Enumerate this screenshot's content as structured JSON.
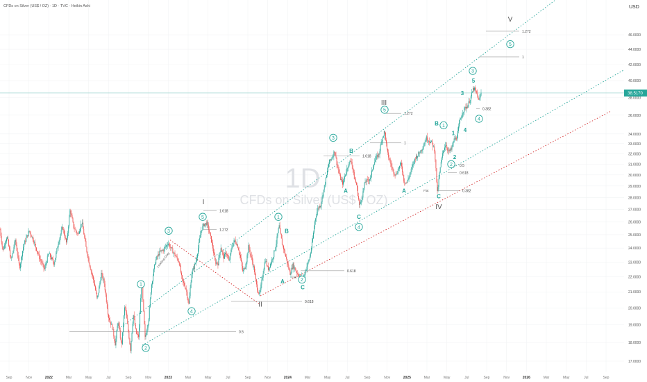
{
  "chart_data": {
    "type": "candlestick",
    "title": "CFDs on Silver (US$ / OZ) · 1D · TVC · Heikin Ashi",
    "watermark_interval": "1D",
    "watermark_symbol": "CFDs on Silver (US$ / OZ)",
    "currency": "USD",
    "last_price_label": "38.5170",
    "colors": {
      "up": "#26a69a",
      "down": "#ef5350",
      "channel_green": "#26a69a",
      "channel_red": "#d32f2f",
      "price_line": "#9cd5cf",
      "fib_line": "#9e9e9e"
    },
    "scale": "log",
    "ylim": [
      17.0,
      50.5
    ],
    "x_axis": [
      "Sep",
      "Nov",
      "2022",
      "Mar",
      "May",
      "Jul",
      "Sep",
      "Nov",
      "2023",
      "Mar",
      "May",
      "Jul",
      "Sep",
      "Nov",
      "2024",
      "Mar",
      "May",
      "Jul",
      "Sep",
      "Nov",
      "2025",
      "Mar",
      "May",
      "Jul",
      "Sep",
      "Nov",
      "2026",
      "Mar",
      "May",
      "Jul",
      "Sep"
    ],
    "y_ticks": [
      "46.0000",
      "44.0000",
      "42.0000",
      "40.0000",
      "38.0000",
      "36.0000",
      "34.0000",
      "33.0000",
      "32.0000",
      "31.0000",
      "30.0000",
      "29.0000",
      "28.0000",
      "27.0000",
      "26.0000",
      "25.0000",
      "24.0000",
      "23.0000",
      "22.0000",
      "21.0000",
      "20.0000",
      "19.0000",
      "18.0000",
      "17.0000"
    ],
    "y_tick_values": [
      46,
      44,
      42,
      40,
      38,
      36,
      34,
      33,
      32,
      31,
      30,
      29,
      28,
      27,
      26,
      25,
      24,
      23,
      22,
      21,
      20,
      19,
      18,
      17
    ],
    "price_path": [
      [
        0,
        25.4
      ],
      [
        4,
        23.8
      ],
      [
        10,
        24.9
      ],
      [
        16,
        23.1
      ],
      [
        22,
        24.6
      ],
      [
        28,
        22.6
      ],
      [
        34,
        24.2
      ],
      [
        42,
        25.3
      ],
      [
        48,
        24.6
      ],
      [
        56,
        23.4
      ],
      [
        64,
        22.5
      ],
      [
        70,
        23.6
      ],
      [
        78,
        22.9
      ],
      [
        84,
        24.4
      ],
      [
        90,
        25.6
      ],
      [
        96,
        24.3
      ],
      [
        101,
        27.0
      ],
      [
        106,
        25.6
      ],
      [
        112,
        25.0
      ],
      [
        118,
        26.0
      ],
      [
        124,
        24.0
      ],
      [
        130,
        22.6
      ],
      [
        136,
        21.5
      ],
      [
        140,
        20.5
      ],
      [
        146,
        22.2
      ],
      [
        150,
        21.6
      ],
      [
        156,
        19.5
      ],
      [
        162,
        18.8
      ],
      [
        166,
        17.9
      ],
      [
        170,
        19.2
      ],
      [
        175,
        17.8
      ],
      [
        180,
        20.2
      ],
      [
        184,
        18.9
      ],
      [
        188,
        17.6
      ],
      [
        192,
        19.6
      ],
      [
        196,
        18.5
      ],
      [
        200,
        18.3
      ],
      [
        204,
        21.7
      ],
      [
        209,
        18.2
      ],
      [
        214,
        19.3
      ],
      [
        218,
        21.4
      ],
      [
        224,
        23.1
      ],
      [
        230,
        23.7
      ],
      [
        236,
        23.9
      ],
      [
        242,
        24.4
      ],
      [
        246,
        24.0
      ],
      [
        252,
        23.5
      ],
      [
        258,
        23.0
      ],
      [
        262,
        21.8
      ],
      [
        268,
        21.2
      ],
      [
        272,
        20.2
      ],
      [
        276,
        22.2
      ],
      [
        282,
        23.0
      ],
      [
        286,
        24.1
      ],
      [
        290,
        25.4
      ],
      [
        294,
        25.8
      ],
      [
        298,
        25.9
      ],
      [
        302,
        25.1
      ],
      [
        306,
        24.2
      ],
      [
        310,
        23.0
      ],
      [
        314,
        22.9
      ],
      [
        318,
        24.1
      ],
      [
        322,
        23.3
      ],
      [
        326,
        23.7
      ],
      [
        330,
        23.0
      ],
      [
        334,
        24.1
      ],
      [
        338,
        24.6
      ],
      [
        342,
        24.2
      ],
      [
        346,
        23.4
      ],
      [
        350,
        22.3
      ],
      [
        354,
        22.8
      ],
      [
        358,
        24.1
      ],
      [
        362,
        23.3
      ],
      [
        366,
        22.5
      ],
      [
        370,
        21.3
      ],
      [
        374,
        20.8
      ],
      [
        378,
        22.0
      ],
      [
        382,
        23.2
      ],
      [
        386,
        22.5
      ],
      [
        390,
        22.9
      ],
      [
        394,
        23.5
      ],
      [
        398,
        24.4
      ],
      [
        402,
        25.7
      ],
      [
        406,
        24.4
      ],
      [
        410,
        23.7
      ],
      [
        414,
        22.9
      ],
      [
        418,
        22.2
      ],
      [
        422,
        22.8
      ],
      [
        426,
        22.4
      ],
      [
        430,
        22.1
      ],
      [
        434,
        21.9
      ],
      [
        438,
        22.1
      ],
      [
        442,
        22.7
      ],
      [
        446,
        23.3
      ],
      [
        450,
        24.5
      ],
      [
        454,
        26.2
      ],
      [
        458,
        27.1
      ],
      [
        462,
        27.4
      ],
      [
        466,
        28.6
      ],
      [
        470,
        29.8
      ],
      [
        474,
        31.2
      ],
      [
        478,
        31.6
      ],
      [
        482,
        32.3
      ],
      [
        486,
        30.8
      ],
      [
        490,
        29.7
      ],
      [
        494,
        29.2
      ],
      [
        498,
        30.2
      ],
      [
        502,
        31.0
      ],
      [
        506,
        31.4
      ],
      [
        510,
        29.8
      ],
      [
        514,
        29.0
      ],
      [
        518,
        27.2
      ],
      [
        522,
        28.2
      ],
      [
        526,
        29.4
      ],
      [
        530,
        29.5
      ],
      [
        534,
        29.8
      ],
      [
        538,
        31.0
      ],
      [
        542,
        31.6
      ],
      [
        546,
        32.0
      ],
      [
        550,
        33.4
      ],
      [
        554,
        34.3
      ],
      [
        558,
        32.1
      ],
      [
        562,
        31.2
      ],
      [
        566,
        30.4
      ],
      [
        570,
        30.0
      ],
      [
        574,
        30.6
      ],
      [
        578,
        31.1
      ],
      [
        582,
        29.4
      ],
      [
        586,
        29.3
      ],
      [
        590,
        30.0
      ],
      [
        594,
        30.8
      ],
      [
        598,
        31.6
      ],
      [
        602,
        31.9
      ],
      [
        606,
        32.3
      ],
      [
        610,
        32.8
      ],
      [
        614,
        33.6
      ],
      [
        618,
        33.3
      ],
      [
        622,
        33.1
      ],
      [
        626,
        32.4
      ],
      [
        630,
        28.4
      ],
      [
        634,
        30.6
      ],
      [
        638,
        32.2
      ],
      [
        642,
        33.0
      ],
      [
        646,
        32.2
      ],
      [
        650,
        32.4
      ],
      [
        654,
        33.4
      ],
      [
        658,
        33.6
      ],
      [
        662,
        35.2
      ],
      [
        666,
        36.3
      ],
      [
        670,
        36.8
      ],
      [
        674,
        37.1
      ],
      [
        678,
        38.0
      ],
      [
        682,
        39.1
      ],
      [
        686,
        38.6
      ],
      [
        690,
        37.6
      ],
      [
        693,
        38.5
      ]
    ],
    "waves": [
      {
        "label": "I",
        "style": "roman",
        "date_x": 293,
        "price": 27.6
      },
      {
        "label": "II",
        "style": "roman",
        "date_x": 375,
        "price": 20.2
      },
      {
        "label": "III",
        "style": "roman",
        "date_x": 553,
        "price": 37.4
      },
      {
        "label": "IV",
        "style": "roman",
        "date_x": 632,
        "price": 27.2
      },
      {
        "label": "V",
        "style": "roman",
        "date_x": 735,
        "price": 48.2
      },
      {
        "label": "1",
        "style": "circle",
        "date_x": 203,
        "price": 21.5
      },
      {
        "label": "2",
        "style": "circle",
        "date_x": 210,
        "price": 17.7
      },
      {
        "label": "3",
        "style": "circle",
        "date_x": 243,
        "price": 25.3
      },
      {
        "label": "4",
        "style": "circle",
        "date_x": 276,
        "price": 19.8
      },
      {
        "label": "5",
        "style": "circle",
        "date_x": 292,
        "price": 26.4
      },
      {
        "label": "1",
        "style": "circle",
        "date_x": 401,
        "price": 26.4
      },
      {
        "label": "2",
        "style": "circle",
        "date_x": 435,
        "price": 21.8
      },
      {
        "label": "3",
        "style": "circle",
        "date_x": 480,
        "price": 33.6
      },
      {
        "label": "4",
        "style": "circle",
        "date_x": 517,
        "price": 25.6
      },
      {
        "label": "5",
        "style": "circle",
        "date_x": 554,
        "price": 36.6
      },
      {
        "label": "1",
        "style": "circle",
        "date_x": 639,
        "price": 34.9
      },
      {
        "label": "2",
        "style": "circle",
        "date_x": 650,
        "price": 31.0
      },
      {
        "label": "3",
        "style": "circle",
        "date_x": 681,
        "price": 41.2
      },
      {
        "label": "4",
        "style": "circle",
        "date_x": 690,
        "price": 35.6
      },
      {
        "label": "5",
        "style": "circle",
        "date_x": 735,
        "price": 44.7
      },
      {
        "label": "A",
        "style": "plain",
        "date_x": 407,
        "price": 21.7
      },
      {
        "label": "B",
        "style": "plain",
        "date_x": 413,
        "price": 25.3
      },
      {
        "label": "C",
        "style": "plain",
        "date_x": 436,
        "price": 21.3
      },
      {
        "label": "A",
        "style": "plain",
        "date_x": 498,
        "price": 28.6
      },
      {
        "label": "B",
        "style": "plain",
        "date_x": 506,
        "price": 32.3
      },
      {
        "label": "C",
        "style": "plain",
        "date_x": 517,
        "price": 26.4
      },
      {
        "label": "A",
        "style": "plain",
        "date_x": 582,
        "price": 28.6
      },
      {
        "label": "B",
        "style": "plain",
        "date_x": 629,
        "price": 35.1
      },
      {
        "label": "C",
        "style": "plain",
        "date_x": 632,
        "price": 28.1
      },
      {
        "label": "1",
        "style": "plain",
        "date_x": 653,
        "price": 34.1
      },
      {
        "label": "2",
        "style": "plain",
        "date_x": 655,
        "price": 31.7
      },
      {
        "label": "3",
        "style": "plain",
        "date_x": 666,
        "price": 38.5
      },
      {
        "label": "4",
        "style": "plain",
        "date_x": 670,
        "price": 34.4
      },
      {
        "label": "5",
        "style": "plain",
        "date_x": 682,
        "price": 40.0
      }
    ],
    "fib_levels": [
      {
        "label": "1.618",
        "x0": 293,
        "x1": 312,
        "price": 26.9
      },
      {
        "label": "1.272",
        "x0": 293,
        "x1": 312,
        "price": 25.4
      },
      {
        "label": "0.618",
        "x0": 333,
        "x1": 435,
        "price": 20.4
      },
      {
        "label": "0.5",
        "x0": 100,
        "x1": 340,
        "price": 18.6
      },
      {
        "label": "0.618",
        "x0": 433,
        "x1": 496,
        "price": 22.4
      },
      {
        "label": "1.618",
        "x0": 466,
        "x1": 518,
        "price": 31.8
      },
      {
        "label": "1.272",
        "x0": 553,
        "x1": 578,
        "price": 36.2
      },
      {
        "label": "1",
        "x0": 533,
        "x1": 578,
        "price": 33.1
      },
      {
        "label": "0.5",
        "x0": 645,
        "x1": 658,
        "price": 30.9
      },
      {
        "label": "0.618",
        "x0": 645,
        "x1": 658,
        "price": 30.2
      },
      {
        "label": "0.382",
        "x0": 630,
        "x1": 662,
        "price": 28.6
      },
      {
        "label": "0.382",
        "x0": 686,
        "x1": 691,
        "price": 36.7
      },
      {
        "label": "1.272",
        "x0": 700,
        "x1": 748,
        "price": 46.5
      },
      {
        "label": "1",
        "x0": 690,
        "x1": 748,
        "price": 43.0
      }
    ],
    "annotations": [
      {
        "text": "Leading Diag",
        "date_x": 228,
        "price": 22.6,
        "angle": -52
      },
      {
        "text": "Flat",
        "date_x": 610,
        "price": 28.5,
        "angle": 0
      },
      {
        "text": "Flat",
        "date_x": 420,
        "price": 21.9,
        "angle": 0
      }
    ]
  }
}
